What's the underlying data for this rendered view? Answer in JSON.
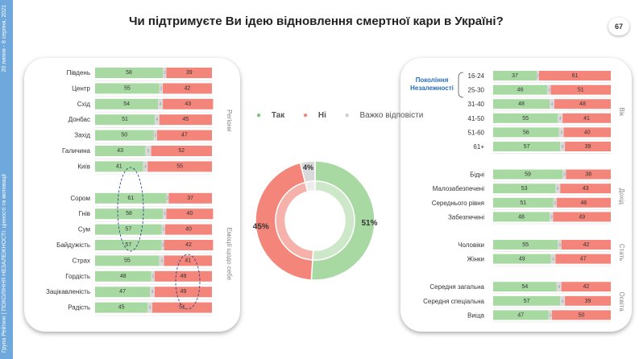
{
  "title": "Чи підтримуєте Ви ідею відновлення смертної кари в Україні?",
  "page_number": "67",
  "sidebar": {
    "text": "Група Рейтинг | ПОКОЛІННЯ НЕЗАЛЕЖНОСТІ: цінності та мотивації",
    "date": "20 липня - 8 серпня, 2021"
  },
  "legend": {
    "yes": "Так",
    "no": "Ні",
    "hard": "Важко відповісти"
  },
  "colors": {
    "yes": "#a9d9a3",
    "no": "#f4857a",
    "hard": "#d9d9d9",
    "yes_light": "#cde8c8",
    "no_light": "#f6b1aa"
  },
  "chart_data": [
    {
      "type": "bar",
      "stacked": true,
      "orientation": "horizontal",
      "groups": [
        {
          "label": "Регіони",
          "rows": [
            {
              "label": "Південь",
              "yes": 58,
              "hard": 3,
              "no": 39
            },
            {
              "label": "Центр",
              "yes": 55,
              "hard": 3,
              "no": 42
            },
            {
              "label": "Схід",
              "yes": 54,
              "hard": 4,
              "no": 43
            },
            {
              "label": "Донбас",
              "yes": 51,
              "hard": 4,
              "no": 45
            },
            {
              "label": "Захід",
              "yes": 50,
              "hard": 3,
              "no": 47
            },
            {
              "label": "Галичина",
              "yes": 43,
              "hard": 5,
              "no": 52
            },
            {
              "label": "Київ",
              "yes": 41,
              "hard": 4,
              "no": 55
            }
          ]
        },
        {
          "label": "Емоції щодо себе",
          "rows": [
            {
              "label": "Сором",
              "yes": 61,
              "hard": 2,
              "no": 37
            },
            {
              "label": "Гнів",
              "yes": 58,
              "hard": 3,
              "no": 40
            },
            {
              "label": "Сум",
              "yes": 57,
              "hard": 3,
              "no": 40
            },
            {
              "label": "Байдужість",
              "yes": 57,
              "hard": 2,
              "no": 42
            },
            {
              "label": "Страх",
              "yes": 55,
              "hard": 4,
              "no": 41
            },
            {
              "label": "Гордість",
              "yes": 48,
              "hard": 3,
              "no": 49
            },
            {
              "label": "Зацікавленість",
              "yes": 47,
              "hard": 4,
              "no": 49
            },
            {
              "label": "Радість",
              "yes": 45,
              "hard": 4,
              "no": 51
            }
          ]
        }
      ]
    },
    {
      "type": "pie",
      "donut": true,
      "slices": [
        {
          "name": "Так",
          "value": 51,
          "label": "51%"
        },
        {
          "name": "Ні",
          "value": 45,
          "label": "45%"
        },
        {
          "name": "Важко відповісти",
          "value": 4,
          "label": "4%"
        }
      ]
    },
    {
      "type": "bar",
      "stacked": true,
      "orientation": "horizontal",
      "annotation": "Покоління Незалежності",
      "groups": [
        {
          "label": "Вік",
          "rows": [
            {
              "label": "16-24",
              "yes": 37,
              "hard": 2,
              "no": 61
            },
            {
              "label": "25-30",
              "yes": 46,
              "hard": 3,
              "no": 51
            },
            {
              "label": "31-40",
              "yes": 48,
              "hard": 4,
              "no": 48
            },
            {
              "label": "41-50",
              "yes": 55,
              "hard": 4,
              "no": 41
            },
            {
              "label": "51-60",
              "yes": 56,
              "hard": 4,
              "no": 40
            },
            {
              "label": "61+",
              "yes": 57,
              "hard": 4,
              "no": 39
            }
          ]
        },
        {
          "label": "Дохід",
          "rows": [
            {
              "label": "Бідні",
              "yes": 59,
              "hard": 3,
              "no": 38
            },
            {
              "label": "Малозабезпечені",
              "yes": 53,
              "hard": 4,
              "no": 43
            },
            {
              "label": "Середнього рівня",
              "yes": 51,
              "hard": 3,
              "no": 46
            },
            {
              "label": "Забезпечені",
              "yes": 48,
              "hard": 3,
              "no": 49
            }
          ]
        },
        {
          "label": "Стать",
          "rows": [
            {
              "label": "Чоловіки",
              "yes": 55,
              "hard": 3,
              "no": 42
            },
            {
              "label": "Жінки",
              "yes": 49,
              "hard": 4,
              "no": 47
            }
          ]
        },
        {
          "label": "Освіта",
          "rows": [
            {
              "label": "Середня загальна",
              "yes": 54,
              "hard": 4,
              "no": 42
            },
            {
              "label": "Середня спеціальна",
              "yes": 57,
              "hard": 4,
              "no": 39
            },
            {
              "label": "Вища",
              "yes": 47,
              "hard": 3,
              "no": 50
            }
          ]
        }
      ]
    }
  ]
}
